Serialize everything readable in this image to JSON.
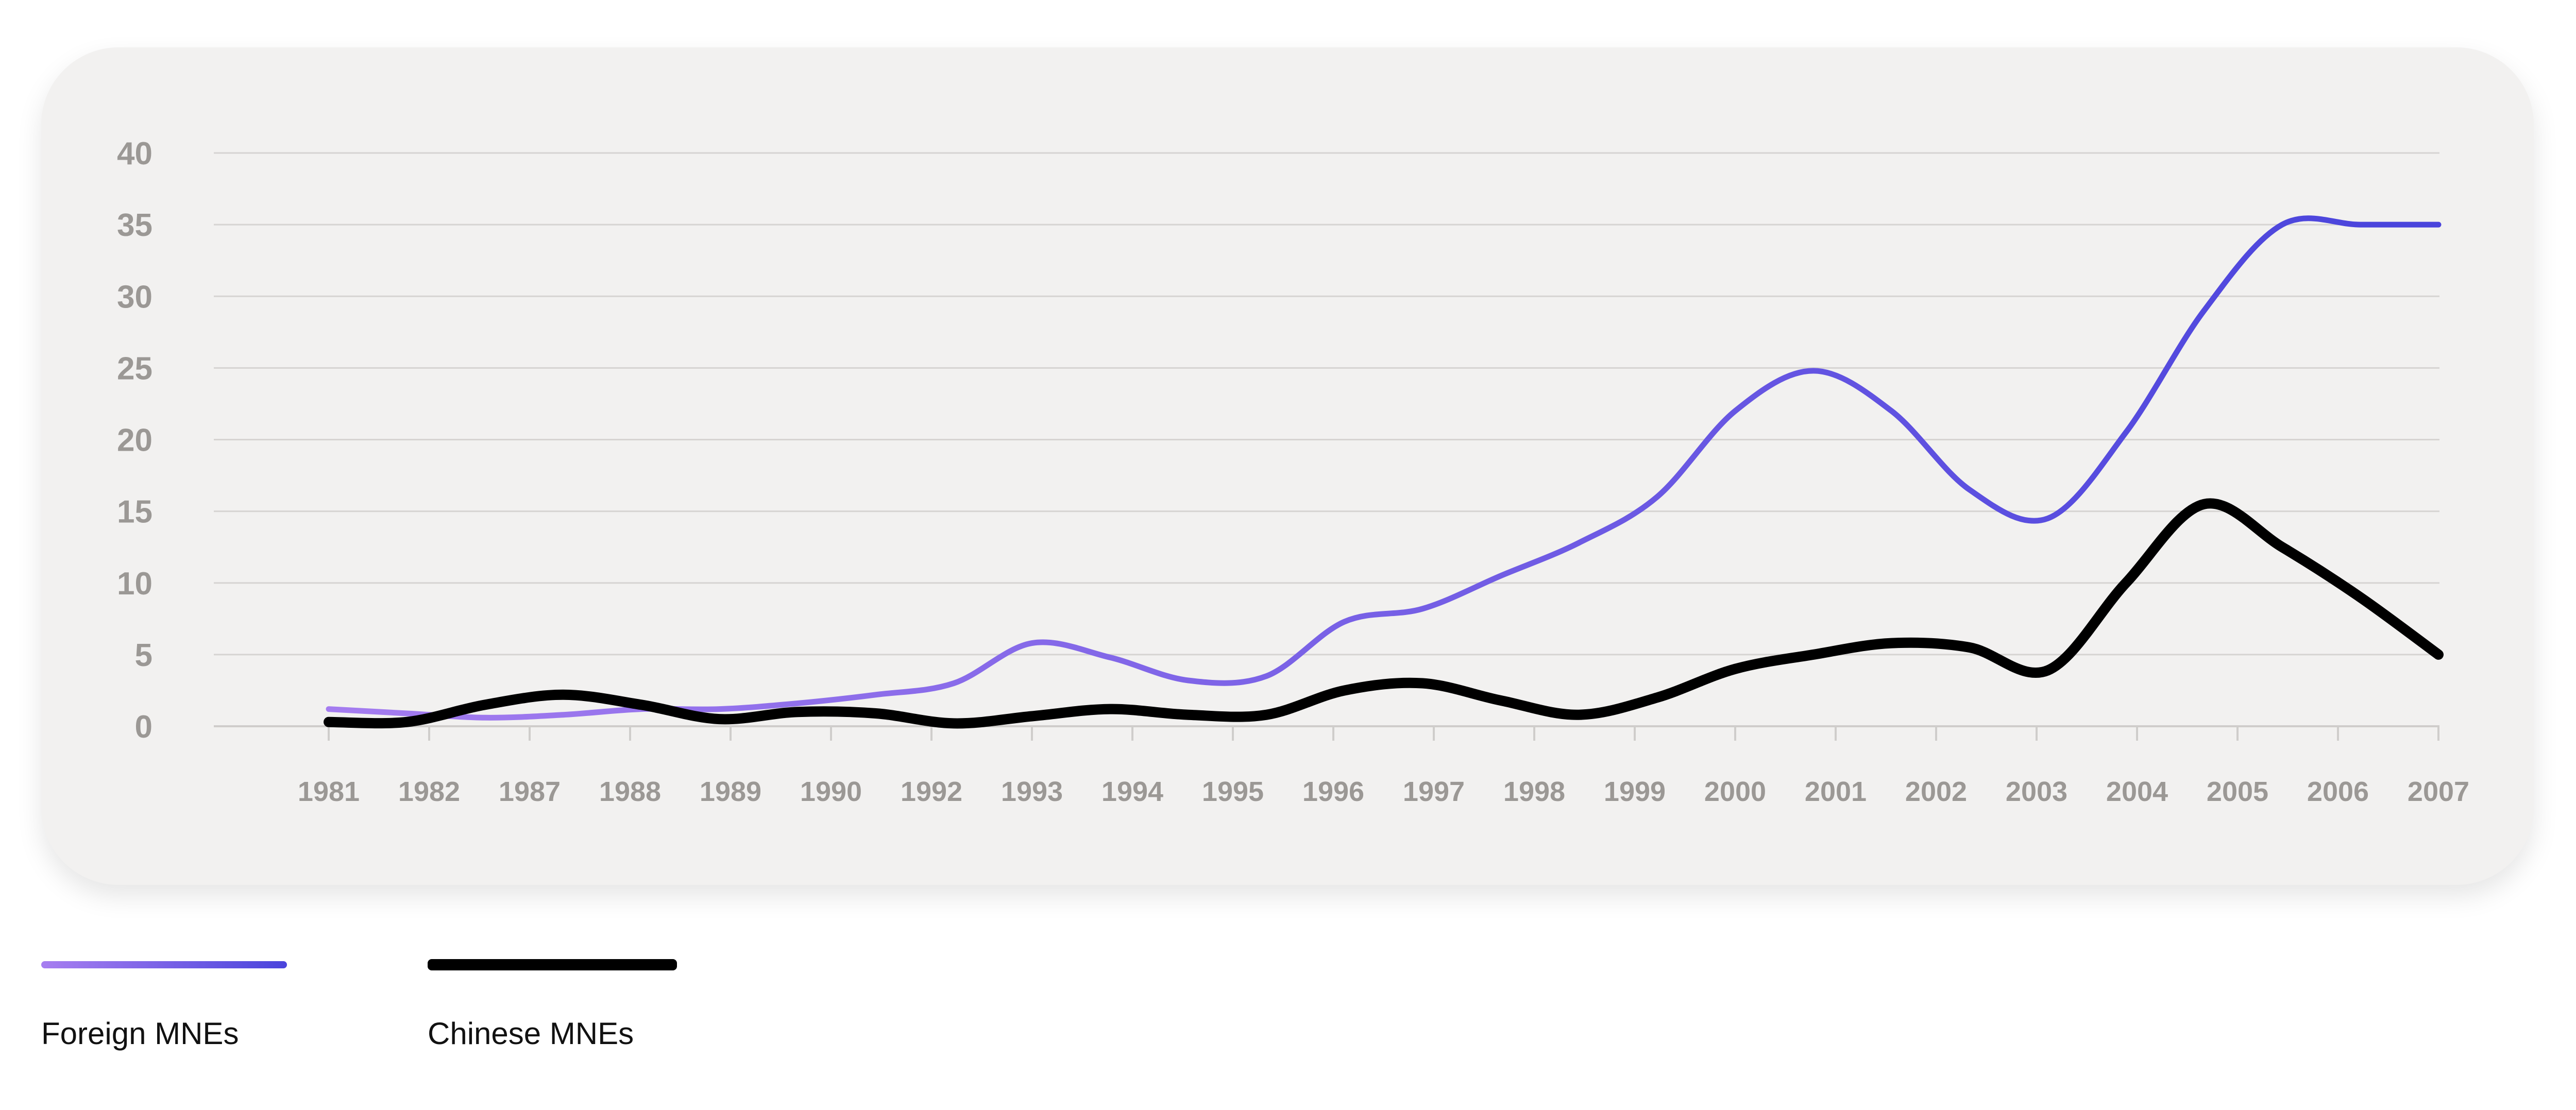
{
  "chart_data": {
    "type": "line",
    "categories": [
      "1981",
      "1982",
      "1987",
      "1988",
      "1989",
      "1990",
      "1992",
      "1993",
      "1994",
      "1995",
      "1996",
      "1997",
      "1998",
      "1999",
      "2000",
      "2001",
      "2002",
      "2003",
      "2004",
      "2005",
      "2006",
      "2007"
    ],
    "ylim": [
      0,
      40
    ],
    "yticks": [
      0,
      5,
      10,
      15,
      20,
      25,
      30,
      35,
      40
    ],
    "grid": true,
    "legend_position": "bottom-left",
    "series": [
      {
        "name": "Foreign MNEs",
        "color_start": "#a77ef0",
        "color_end": "#4a44dc",
        "stroke": "gradient",
        "points": [
          [
            "1981",
            1.2
          ],
          [
            "1982",
            0.9
          ],
          [
            "1982",
            0.6
          ],
          [
            "1987",
            0.8
          ],
          [
            "1988",
            1.2
          ],
          [
            "1989",
            1.2
          ],
          [
            "1990",
            1.6
          ],
          [
            "1992",
            2.2
          ],
          [
            "1993",
            3.0
          ],
          [
            "1993",
            5.8
          ],
          [
            "1994",
            4.8
          ],
          [
            "1995",
            3.2
          ],
          [
            "1996",
            3.5
          ],
          [
            "1996",
            7.3
          ],
          [
            "1997",
            8.2
          ],
          [
            "1998",
            10.5
          ],
          [
            "1999",
            12.8
          ],
          [
            "2000",
            16.0
          ],
          [
            "2001",
            22.0
          ],
          [
            "2001",
            24.8
          ],
          [
            "2002",
            22.0
          ],
          [
            "2003",
            16.5
          ],
          [
            "2003",
            14.5
          ],
          [
            "2004",
            20.5
          ],
          [
            "2005",
            29.0
          ],
          [
            "2005",
            35.0
          ],
          [
            "2006",
            35.0
          ],
          [
            "2007",
            35.0
          ]
        ]
      },
      {
        "name": "Chinese MNEs",
        "color": "#000000",
        "points": [
          [
            "1981",
            0.3
          ],
          [
            "1982",
            0.3
          ],
          [
            "1982",
            1.5
          ],
          [
            "1987",
            2.2
          ],
          [
            "1988",
            1.5
          ],
          [
            "1989",
            0.5
          ],
          [
            "1989",
            1.0
          ],
          [
            "1990",
            0.9
          ],
          [
            "1992",
            0.2
          ],
          [
            "1993",
            0.7
          ],
          [
            "1994",
            1.2
          ],
          [
            "1995",
            0.8
          ],
          [
            "1996",
            0.8
          ],
          [
            "1997",
            2.5
          ],
          [
            "1997",
            3.0
          ],
          [
            "1998",
            1.8
          ],
          [
            "1999",
            0.8
          ],
          [
            "2000",
            2.0
          ],
          [
            "2000",
            4.0
          ],
          [
            "2001",
            5.0
          ],
          [
            "2002",
            5.8
          ],
          [
            "2003",
            5.5
          ],
          [
            "2003",
            3.9
          ],
          [
            "2004",
            10.0
          ],
          [
            "2005",
            15.5
          ],
          [
            "2005",
            12.5
          ],
          [
            "2006",
            9.0
          ],
          [
            "2007",
            5.0
          ]
        ]
      }
    ]
  },
  "legend": {
    "items": [
      {
        "label": "Foreign MNEs",
        "color_start": "#a77ef0",
        "color_end": "#4a44dc"
      },
      {
        "label": "Chinese MNEs",
        "color": "#000000"
      }
    ]
  }
}
